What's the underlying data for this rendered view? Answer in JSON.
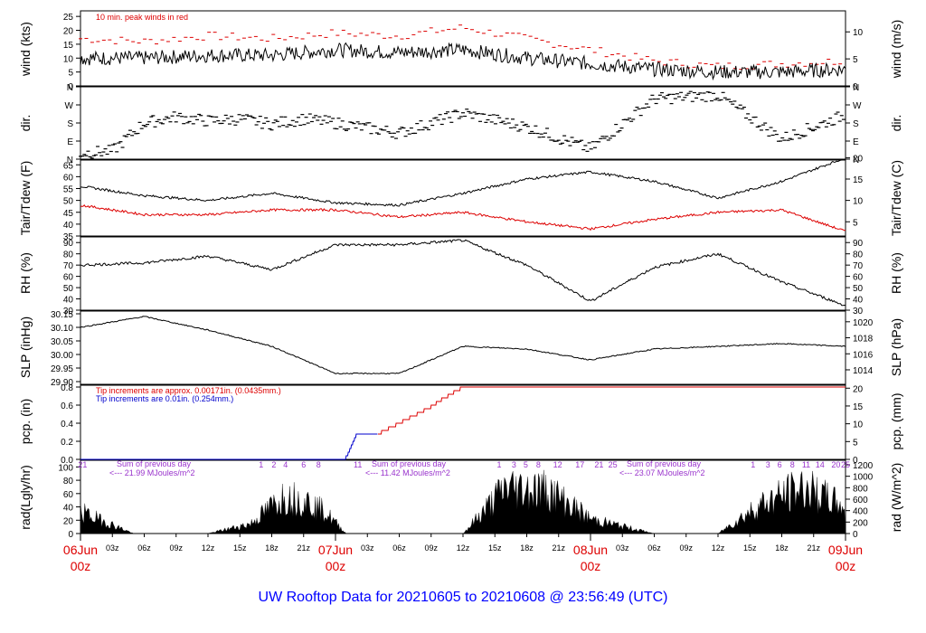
{
  "title": "UW Rooftop Data for 20210605  to  20210608 @ 23:56:49  (UTC)",
  "colors": {
    "black": "#000000",
    "red": "#dd0000",
    "blue": "#0000cc",
    "purple": "#9933cc",
    "title": "#0000ff"
  },
  "x_axis": {
    "hour_ticks": [
      "03z",
      "06z",
      "09z",
      "12z",
      "15z",
      "18z",
      "21z",
      "03z",
      "06z",
      "09z",
      "12z",
      "15z",
      "18z",
      "21z",
      "03z",
      "06z",
      "09z",
      "12z",
      "15z",
      "18z",
      "21z"
    ],
    "day_labels": [
      {
        "date": "06Jun",
        "hour": "00z"
      },
      {
        "date": "07Jun",
        "hour": "00z"
      },
      {
        "date": "08Jun",
        "hour": "00z"
      },
      {
        "date": "09Jun",
        "hour": "00z"
      }
    ]
  },
  "panels": {
    "wind": {
      "left_label": "wind (kts)",
      "right_label": "wind (m/s)",
      "left_ticks": [
        "0",
        "5",
        "10",
        "15",
        "20",
        "25"
      ],
      "right_ticks": [
        "0",
        "5",
        "10"
      ],
      "note": "10 min. peak winds in red"
    },
    "dir": {
      "left_label": "dir.",
      "right_label": "dir.",
      "left_ticks": [
        "N",
        "E",
        "S",
        "W",
        "N"
      ],
      "right_ticks": [
        "N",
        "E",
        "S",
        "W",
        "N"
      ]
    },
    "temp": {
      "left_label": "Tair/Tdew (F)",
      "right_label": "Tair/Tdew (C)",
      "left_ticks": [
        "35",
        "40",
        "45",
        "50",
        "55",
        "60",
        "65"
      ],
      "right_ticks": [
        "5",
        "10",
        "15",
        "20"
      ]
    },
    "rh": {
      "left_label": "RH (%)",
      "right_label": "RH (%)",
      "left_ticks": [
        "30",
        "40",
        "50",
        "60",
        "70",
        "80",
        "90"
      ],
      "right_ticks": [
        "30",
        "40",
        "50",
        "60",
        "70",
        "80",
        "90"
      ]
    },
    "slp": {
      "left_label": "SLP (inHg)",
      "right_label": "SLP (hPa)",
      "left_ticks": [
        "29.90",
        "29.95",
        "30.00",
        "30.05",
        "30.10",
        "30.15"
      ],
      "right_ticks": [
        "1014",
        "1016",
        "1018",
        "1020"
      ]
    },
    "pcp": {
      "left_label": "pcp. (in)",
      "right_label": "pcp. (mm)",
      "left_ticks": [
        "0.0",
        "0.2",
        "0.4",
        "0.6",
        "0.8"
      ],
      "right_ticks": [
        "0",
        "5",
        "10",
        "15",
        "20"
      ],
      "tip_red": "Tip increments are approx. 0.00171in. (0.0435mm.)",
      "tip_blue": "Tip increments are 0.01in. (0.254mm.)"
    },
    "rad": {
      "left_label": "rad(Lgly/hr)",
      "right_label": "rad (W/m^2)",
      "left_ticks": [
        "0",
        "20",
        "40",
        "60",
        "80",
        "100"
      ],
      "right_ticks": [
        "0",
        "200",
        "400",
        "600",
        "800",
        "1000",
        "1200"
      ],
      "day_marks": [
        "21",
        "1",
        "2",
        "4",
        "6",
        "8",
        "11",
        "1",
        "3",
        "5",
        "8",
        "12",
        "17",
        "21",
        "25",
        "1",
        "3",
        "6",
        "8",
        "11",
        "14",
        "20",
        "25"
      ],
      "sums": [
        {
          "line1": "Sum of previous day",
          "line2": "<--- 21.99 MJoules/m^2"
        },
        {
          "line1": "Sum of previous day",
          "line2": "<--- 11.42 MJoules/m^2"
        },
        {
          "line1": "Sum of previous day",
          "line2": "<--- 23.07 MJoules/m^2"
        }
      ]
    }
  },
  "chart_data": [
    {
      "type": "line",
      "title": "",
      "xlabel": "",
      "ylabel": "wind (kts)",
      "ylim": [
        0,
        27
      ],
      "x": [
        0,
        6,
        12,
        18,
        24,
        30,
        36,
        42,
        48,
        54,
        60,
        66,
        72
      ],
      "series": [
        {
          "name": "10 min. peak winds",
          "values": [
            17,
            16,
            18,
            17,
            19,
            18,
            21,
            17,
            13,
            9,
            7,
            8,
            9
          ]
        },
        {
          "name": "",
          "values": [
            10,
            10,
            11,
            11,
            13,
            12,
            13,
            10,
            8,
            6,
            5,
            5,
            6
          ]
        }
      ]
    },
    {
      "type": "scatter",
      "title": "",
      "xlabel": "",
      "ylabel": "dir.",
      "ylim": [
        0,
        360
      ],
      "x": [
        0,
        3,
        6,
        9,
        12,
        15,
        18,
        21,
        24,
        30,
        36,
        42,
        48,
        54,
        60,
        66,
        72
      ],
      "series": [
        {
          "name": "",
          "values": [
            30,
            40,
            180,
            210,
            190,
            200,
            175,
            200,
            180,
            130,
            230,
            160,
            50,
            300,
            320,
            100,
            220
          ]
        }
      ]
    },
    {
      "type": "line",
      "title": "",
      "xlabel": "",
      "ylabel": "Tair/Tdew (F)",
      "ylim": [
        35,
        67
      ],
      "x": [
        0,
        6,
        12,
        18,
        24,
        30,
        36,
        42,
        48,
        54,
        60,
        66,
        72
      ],
      "series": [
        {
          "name": "Tair",
          "values": [
            56,
            52,
            50,
            53,
            49,
            48,
            53,
            59,
            62,
            58,
            51,
            58,
            68
          ]
        },
        {
          "name": "Tdew",
          "values": [
            48,
            44,
            44,
            46,
            46,
            43,
            45,
            41,
            38,
            42,
            45,
            46,
            37
          ]
        }
      ]
    },
    {
      "type": "line",
      "title": "",
      "xlabel": "",
      "ylabel": "RH (%)",
      "ylim": [
        30,
        95
      ],
      "x": [
        0,
        6,
        12,
        18,
        24,
        30,
        36,
        42,
        48,
        54,
        60,
        66,
        72
      ],
      "series": [
        {
          "name": "",
          "values": [
            70,
            72,
            78,
            66,
            88,
            88,
            92,
            70,
            38,
            68,
            80,
            55,
            34
          ]
        }
      ]
    },
    {
      "type": "line",
      "title": "",
      "xlabel": "",
      "ylabel": "SLP (inHg)",
      "ylim": [
        29.89,
        30.16
      ],
      "x": [
        0,
        6,
        12,
        18,
        24,
        30,
        36,
        42,
        48,
        54,
        60,
        66,
        72
      ],
      "series": [
        {
          "name": "",
          "values": [
            30.1,
            30.14,
            30.09,
            30.03,
            29.93,
            29.93,
            30.03,
            30.02,
            29.98,
            30.02,
            30.03,
            30.04,
            30.03
          ]
        }
      ]
    },
    {
      "type": "line",
      "title": "",
      "xlabel": "",
      "ylabel": "pcp. (in)",
      "ylim": [
        0,
        0.82
      ],
      "x": [
        0,
        21,
        25,
        26,
        28,
        30,
        33,
        34,
        36,
        40,
        72
      ],
      "series": [
        {
          "name": "Tip increments are 0.01in. (0.254mm.)",
          "values": [
            0,
            0,
            0.02,
            0.28,
            0.28,
            null,
            null,
            null,
            null,
            null,
            null
          ]
        },
        {
          "name": "Tip increments are approx. 0.00171in. (0.0435mm.)",
          "values": [
            null,
            null,
            null,
            null,
            0.28,
            0.4,
            0.58,
            0.66,
            0.8,
            0.81,
            0.81
          ]
        }
      ]
    },
    {
      "type": "area",
      "title": "",
      "xlabel": "",
      "ylabel": "rad(Lgly/hr)",
      "ylim": [
        0,
        110
      ],
      "x": [
        0,
        5,
        12,
        16,
        19,
        21,
        23,
        25,
        28,
        36,
        40,
        44,
        48,
        54,
        60,
        64,
        68,
        72
      ],
      "series": [
        {
          "name": "",
          "values": [
            45,
            0,
            0,
            20,
            75,
            70,
            45,
            0,
            0,
            0,
            95,
            90,
            30,
            0,
            0,
            60,
            95,
            55
          ]
        }
      ]
    }
  ]
}
